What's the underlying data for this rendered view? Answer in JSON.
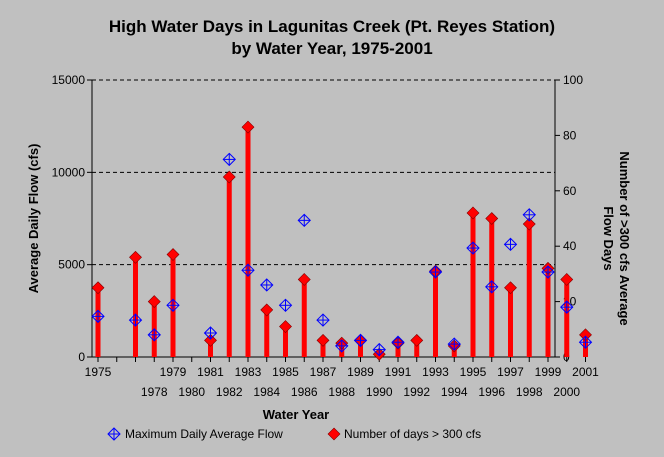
{
  "chart_data": {
    "type": "bar",
    "title": "High Water Days in Lagunitas Creek (Pt. Reyes Station)",
    "subtitle": "by Water Year, 1975-2001",
    "xlabel": "Water Year",
    "ylabel_left": "Average Daily Flow (cfs)",
    "ylabel_right": "Number of >300 cfs Average Flow Days",
    "ylim_left": [
      0,
      15000
    ],
    "ylim_right": [
      0,
      100
    ],
    "yticks_left": [
      "0",
      "5000",
      "10000",
      "15000"
    ],
    "yticks_right": [
      "0",
      "20",
      "40",
      "60",
      "80",
      "100"
    ],
    "grid": "horizontal dashed",
    "legend_position": "bottom",
    "x": [
      1975,
      1976,
      1977,
      1978,
      1979,
      1980,
      1981,
      1982,
      1983,
      1984,
      1985,
      1986,
      1987,
      1988,
      1989,
      1990,
      1991,
      1992,
      1993,
      1994,
      1995,
      1996,
      1997,
      1998,
      1999,
      2000,
      2001
    ],
    "x_tick_labels_row1": [
      "1975",
      "1979",
      "1981",
      "1983",
      "1985",
      "1987",
      "1989",
      "1991",
      "1993",
      "1995",
      "1997",
      "1999",
      "2001"
    ],
    "x_tick_labels_row2": [
      "1978",
      "1980",
      "1982",
      "1984",
      "1986",
      "1988",
      "1990",
      "1992",
      "1994",
      "1996",
      "1998",
      "2000"
    ],
    "series": [
      {
        "name": "Maximum Daily Average Flow",
        "axis": "left",
        "marker": "diamond-cross",
        "color": "#0000ff",
        "values": [
          2200,
          null,
          2000,
          1200,
          2800,
          null,
          1300,
          10700,
          4700,
          3900,
          2800,
          7400,
          2000,
          600,
          900,
          400,
          800,
          null,
          4600,
          700,
          5900,
          3800,
          6100,
          7700,
          4600,
          2700,
          800
        ]
      },
      {
        "name": "Number of days > 300 cfs",
        "axis": "right",
        "marker": "diamond",
        "color": "#ff0000",
        "values": [
          25,
          null,
          36,
          20,
          37,
          null,
          6,
          65,
          83,
          17,
          11,
          28,
          6,
          5,
          6,
          1,
          5,
          6,
          31,
          4,
          52,
          50,
          25,
          48,
          32,
          28,
          8
        ]
      }
    ]
  }
}
